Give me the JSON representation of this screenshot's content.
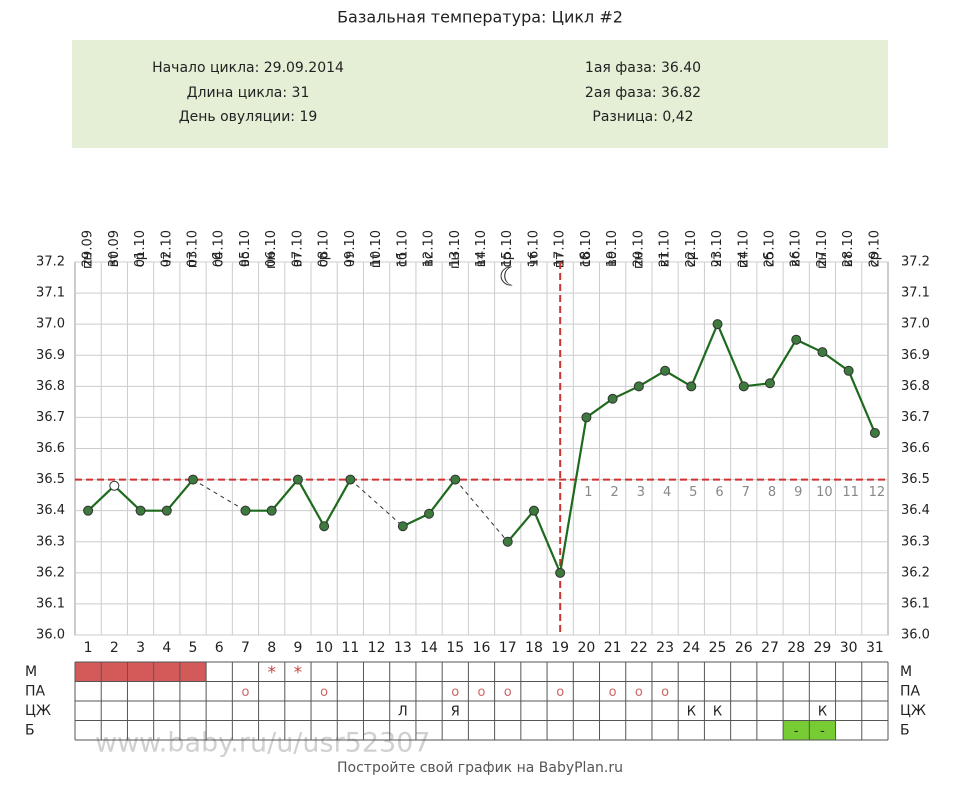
{
  "chart_data": {
    "type": "line",
    "title": "Базальная температура: Цикл #2",
    "info_left": [
      "Начало цикла: 29.09.2014",
      "Длина цикла: 31",
      "День овуляции: 19"
    ],
    "info_right": [
      "1ая фаза: 36.40",
      "2ая фаза: 36.82",
      "Разница: 0,42"
    ],
    "days": [
      1,
      2,
      3,
      4,
      5,
      6,
      7,
      8,
      9,
      10,
      11,
      12,
      13,
      14,
      15,
      16,
      17,
      18,
      19,
      20,
      21,
      22,
      23,
      24,
      25,
      26,
      27,
      28,
      29,
      30,
      31
    ],
    "dates": [
      "29.09",
      "30.09",
      "01.10",
      "02.10",
      "03.10",
      "04.10",
      "05.10",
      "06.10",
      "07.10",
      "08.10",
      "09.10",
      "10.10",
      "11.10",
      "12.10",
      "13.10",
      "14.10",
      "15.10",
      "16.10",
      "17.10",
      "18.10",
      "19.10",
      "20.10",
      "21.10",
      "22.10",
      "23.10",
      "24.10",
      "25.10",
      "26.10",
      "27.10",
      "28.10",
      "29.10"
    ],
    "weekdays": [
      "пн",
      "вт",
      "ср",
      "чт",
      "пт",
      "сб",
      "вс",
      "пн",
      "вт",
      "ср",
      "чт",
      "пт",
      "сб",
      "вс",
      "пн",
      "вт",
      "ср",
      "чт",
      "пт",
      "сб",
      "вс",
      "пн",
      "вт",
      "ср",
      "чт",
      "пт",
      "сб",
      "вс",
      "пн",
      "вт",
      "ср"
    ],
    "series": [
      {
        "name": "Температура",
        "color": "#1e6b1e",
        "values": [
          36.4,
          36.48,
          36.4,
          36.4,
          36.5,
          null,
          36.4,
          36.4,
          36.5,
          36.35,
          36.5,
          null,
          36.35,
          36.39,
          36.5,
          null,
          36.3,
          36.4,
          36.2,
          36.7,
          36.76,
          36.8,
          36.85,
          36.8,
          37.0,
          36.8,
          36.81,
          36.95,
          36.91,
          36.85,
          36.65
        ]
      }
    ],
    "hollow_points": [
      2
    ],
    "coverline": 36.5,
    "ovulation_day": 19,
    "phase2_labels": [
      1,
      2,
      3,
      4,
      5,
      6,
      7,
      8,
      9,
      10,
      11,
      12
    ],
    "ylim": [
      36.0,
      37.2
    ],
    "yticks": [
      {
        "value": 36,
        "label": "36.0"
      },
      36.1,
      36.2,
      36.3,
      36.4,
      36.5,
      36.6,
      36.7,
      36.8,
      36.9,
      {
        "value": 37,
        "label": "37.0"
      },
      37.1,
      37.2
    ],
    "grid": true,
    "table": [
      {
        "label": "М",
        "fill_days": [
          1,
          2,
          3,
          4,
          5
        ],
        "fill_color": "#d45a5a",
        "cells": [
          null,
          null,
          null,
          null,
          null,
          null,
          null,
          "*",
          "*",
          null,
          null,
          null,
          null,
          null,
          null,
          null,
          null,
          null,
          null,
          null,
          null,
          null,
          null,
          null,
          null,
          null,
          null,
          null,
          null,
          null,
          null
        ]
      },
      {
        "label": "ПА",
        "cells": [
          null,
          null,
          null,
          null,
          null,
          null,
          "о",
          null,
          null,
          "о",
          null,
          null,
          null,
          null,
          "о",
          "о",
          "о",
          null,
          "о",
          null,
          "о",
          "о",
          "о",
          null,
          null,
          null,
          null,
          null,
          null,
          null,
          null
        ]
      },
      {
        "label": "ЦЖ",
        "cells": [
          null,
          null,
          null,
          null,
          null,
          null,
          null,
          null,
          null,
          null,
          null,
          null,
          "Л",
          null,
          "Я",
          null,
          null,
          null,
          null,
          null,
          null,
          null,
          null,
          "К",
          "К",
          null,
          null,
          null,
          "К",
          null,
          null
        ]
      },
      {
        "label": "Б",
        "fill_days": [
          28,
          29
        ],
        "fill_color": "#77cc33",
        "cells": [
          null,
          null,
          null,
          null,
          null,
          null,
          null,
          null,
          null,
          null,
          null,
          null,
          null,
          null,
          null,
          null,
          null,
          null,
          null,
          null,
          null,
          null,
          null,
          null,
          null,
          null,
          null,
          "-",
          "-",
          null,
          null
        ]
      }
    ],
    "watermark": "www.baby.ru/u/usr52307",
    "footer": "Постройте свой график на BabyPlan.ru"
  }
}
